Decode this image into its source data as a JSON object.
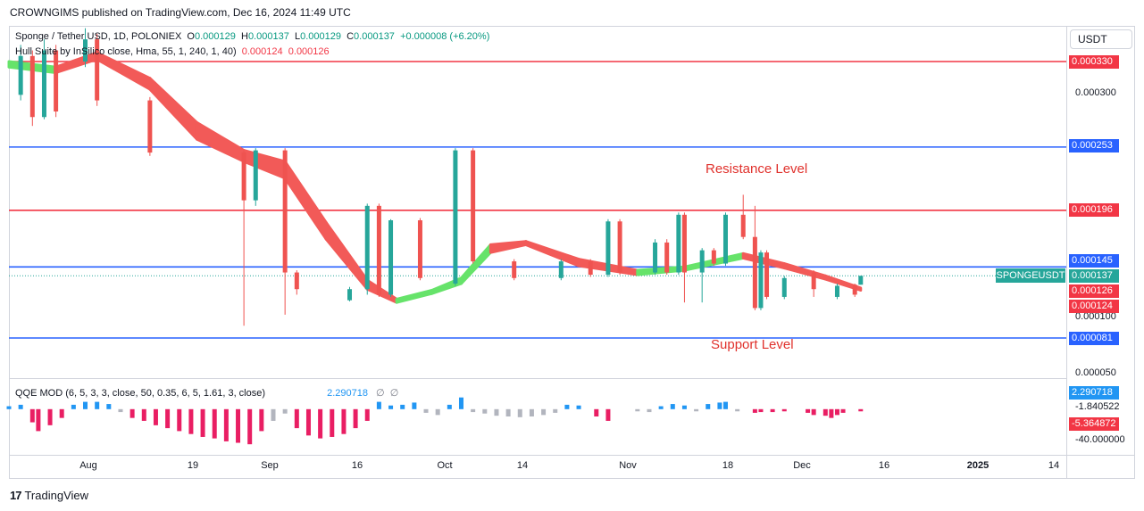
{
  "header": {
    "publisher_line": "CROWNGIMS published on TradingView.com, Dec 16, 2024 11:49 UTC"
  },
  "legend": {
    "symbol": "Sponge / Tether USD, 1D, POLONIEX",
    "o_label": "O",
    "o_value": "0.000129",
    "h_label": "H",
    "h_value": "0.000137",
    "l_label": "L",
    "l_value": "0.000129",
    "c_label": "C",
    "c_value": "0.000137",
    "change": "+0.000008 (+6.20%)",
    "hull_text": "Hull Suite by InSilico close, Hma, 55, 1, 240, 1, 40)",
    "hull_v1": "0.000124",
    "hull_v2": "0.000126"
  },
  "currency_button": "USDT",
  "price_axis": {
    "ticks": [
      "0.000300",
      "0.000100",
      "0.000050"
    ],
    "labels": [
      {
        "text": "0.000330",
        "color": "#f23645"
      },
      {
        "text": "0.000253",
        "color": "#2962ff"
      },
      {
        "text": "0.000196",
        "color": "#f23645"
      },
      {
        "text": "0.000145",
        "color": "#2962ff"
      },
      {
        "text": "0.000137",
        "color": "#26a69a"
      },
      {
        "text": "0.000126",
        "color": "#f23645"
      },
      {
        "text": "0.000124",
        "color": "#f23645"
      },
      {
        "text": "0.000081",
        "color": "#2962ff"
      }
    ]
  },
  "symbol_tag": "SPONGEUSDT",
  "annotations": {
    "resistance": "Resistance Level",
    "support": "Support Level"
  },
  "time_axis": [
    "Aug",
    "19",
    "Sep",
    "16",
    "Oct",
    "14",
    "Nov",
    "18",
    "Dec",
    "16",
    "2025",
    "14"
  ],
  "qqe": {
    "label": "QQE MOD (6, 5, 3, 3, close, 50, 0.35, 6, 5, 1.61, 3, close)",
    "value": "2.290718",
    "axis_labels": [
      {
        "text": "2.290718",
        "color": "#2196f3"
      },
      {
        "text": "-1.840522",
        "color": null
      },
      {
        "text": "-5.364872",
        "color": "#f23645"
      },
      {
        "text": "-40.000000",
        "color": null
      }
    ]
  },
  "branding": {
    "name": "TradingView"
  },
  "chart_data": {
    "type": "candlestick",
    "title": "Sponge / Tether USD, 1D, POLONIEX",
    "x_range": [
      "2024-07-24",
      "2025-01-20"
    ],
    "ylim": [
      4e-05,
      0.00035
    ],
    "horizontal_levels": [
      {
        "value": 0.00033,
        "color": "#f23645"
      },
      {
        "value": 0.000253,
        "color": "#2962ff"
      },
      {
        "value": 0.000196,
        "color": "#f23645"
      },
      {
        "value": 0.000145,
        "color": "#2962ff"
      },
      {
        "value": 8.1e-05,
        "color": "#2962ff"
      }
    ],
    "candles": [
      {
        "date": "2024-07-26",
        "o": 0.0003,
        "c": 0.000335,
        "h": 0.000345,
        "l": 0.000295
      },
      {
        "date": "2024-07-28",
        "o": 0.000335,
        "c": 0.00028,
        "h": 0.00034,
        "l": 0.000272
      },
      {
        "date": "2024-07-30",
        "o": 0.00028,
        "c": 0.00034,
        "h": 0.00035,
        "l": 0.000278
      },
      {
        "date": "2024-08-01",
        "o": 0.00034,
        "c": 0.000285,
        "h": 0.000345,
        "l": 0.00028
      },
      {
        "date": "2024-08-06",
        "o": 0.00033,
        "c": 0.00035,
        "h": 0.00036,
        "l": 0.000325
      },
      {
        "date": "2024-08-08",
        "o": 0.00035,
        "c": 0.000295,
        "h": 0.000355,
        "l": 0.00029
      },
      {
        "date": "2024-08-17",
        "o": 0.000295,
        "c": 0.000248,
        "h": 0.000298,
        "l": 0.000245
      },
      {
        "date": "2024-09-02",
        "o": 0.000248,
        "c": 0.000205,
        "h": 0.00025,
        "l": 9.2e-05
      },
      {
        "date": "2024-09-04",
        "o": 0.000205,
        "c": 0.00025,
        "h": 0.000252,
        "l": 0.0002
      },
      {
        "date": "2024-09-09",
        "o": 0.00025,
        "c": 0.00014,
        "h": 0.000252,
        "l": 0.000102
      },
      {
        "date": "2024-09-11",
        "o": 0.00014,
        "c": 0.000125,
        "h": 0.000142,
        "l": 0.00012
      },
      {
        "date": "2024-09-20",
        "o": 0.000115,
        "c": 0.000125,
        "h": 0.000127,
        "l": 0.000114
      },
      {
        "date": "2024-09-23",
        "o": 0.000125,
        "c": 0.0002,
        "h": 0.000202,
        "l": 0.00012
      },
      {
        "date": "2024-09-25",
        "o": 0.0002,
        "c": 0.00012,
        "h": 0.000202,
        "l": 0.000118
      },
      {
        "date": "2024-09-27",
        "o": 0.00012,
        "c": 0.000187,
        "h": 0.000188,
        "l": 0.000118
      },
      {
        "date": "2024-10-02",
        "o": 0.000187,
        "c": 0.000135,
        "h": 0.000189,
        "l": 0.000133
      },
      {
        "date": "2024-10-08",
        "o": 0.00013,
        "c": 0.00025,
        "h": 0.000252,
        "l": 0.000128
      },
      {
        "date": "2024-10-11",
        "o": 0.00025,
        "c": 0.00015,
        "h": 0.000252,
        "l": 0.000148
      },
      {
        "date": "2024-10-18",
        "o": 0.00015,
        "c": 0.000135,
        "h": 0.000152,
        "l": 0.000133
      },
      {
        "date": "2024-10-26",
        "o": 0.000135,
        "c": 0.00015,
        "h": 0.000152,
        "l": 0.000133
      },
      {
        "date": "2024-10-31",
        "o": 0.00015,
        "c": 0.000138,
        "h": 0.000152,
        "l": 0.000136
      },
      {
        "date": "2024-11-03",
        "o": 0.000138,
        "c": 0.000186,
        "h": 0.000188,
        "l": 0.000136
      },
      {
        "date": "2024-11-05",
        "o": 0.000186,
        "c": 0.00014,
        "h": 0.000188,
        "l": 0.000138
      },
      {
        "date": "2024-11-11",
        "o": 0.00014,
        "c": 0.000167,
        "h": 0.00017,
        "l": 0.000138
      },
      {
        "date": "2024-11-13",
        "o": 0.000167,
        "c": 0.00014,
        "h": 0.00017,
        "l": 0.000138
      },
      {
        "date": "2024-11-15",
        "o": 0.00014,
        "c": 0.000192,
        "h": 0.000194,
        "l": 0.000138
      },
      {
        "date": "2024-11-16",
        "o": 0.000192,
        "c": 0.00014,
        "h": 0.000194,
        "l": 0.000113
      },
      {
        "date": "2024-11-19",
        "o": 0.00014,
        "c": 0.00016,
        "h": 0.000162,
        "l": 0.000113
      },
      {
        "date": "2024-11-21",
        "o": 0.00016,
        "c": 0.000148,
        "h": 0.000162,
        "l": 0.000146
      },
      {
        "date": "2024-11-23",
        "o": 0.000148,
        "c": 0.000192,
        "h": 0.000194,
        "l": 0.000146
      },
      {
        "date": "2024-11-26",
        "o": 0.000192,
        "c": 0.000172,
        "h": 0.00021,
        "l": 0.00017
      },
      {
        "date": "2024-11-28",
        "o": 0.000172,
        "c": 0.000108,
        "h": 0.0002,
        "l": 0.000106
      },
      {
        "date": "2024-11-29",
        "o": 0.000108,
        "c": 0.000158,
        "h": 0.00016,
        "l": 0.000106
      },
      {
        "date": "2024-11-30",
        "o": 0.000158,
        "c": 0.000118,
        "h": 0.00016,
        "l": 0.000116
      },
      {
        "date": "2024-12-03",
        "o": 0.000118,
        "c": 0.000135,
        "h": 0.000137,
        "l": 0.000116
      },
      {
        "date": "2024-12-08",
        "o": 0.00014,
        "c": 0.000125,
        "h": 0.000142,
        "l": 0.000118
      },
      {
        "date": "2024-12-12",
        "o": 0.000118,
        "c": 0.000128,
        "h": 0.00013,
        "l": 0.000116
      },
      {
        "date": "2024-12-15",
        "o": 0.000129,
        "c": 0.00012,
        "h": 0.00013,
        "l": 0.000118
      },
      {
        "date": "2024-12-16",
        "o": 0.000129,
        "c": 0.000137,
        "h": 0.000137,
        "l": 0.000129
      }
    ],
    "hull_band": [
      {
        "date": "2024-07-24",
        "a": 0.00033,
        "b": 0.000325,
        "trend": "up"
      },
      {
        "date": "2024-08-01",
        "a": 0.000325,
        "b": 0.00032,
        "trend": "up"
      },
      {
        "date": "2024-08-08",
        "a": 0.000338,
        "b": 0.000332,
        "trend": "down"
      },
      {
        "date": "2024-08-17",
        "a": 0.000315,
        "b": 0.000305,
        "trend": "down"
      },
      {
        "date": "2024-08-25",
        "a": 0.000275,
        "b": 0.00026,
        "trend": "down"
      },
      {
        "date": "2024-09-02",
        "a": 0.00025,
        "b": 0.00024,
        "trend": "down"
      },
      {
        "date": "2024-09-09",
        "a": 0.00024,
        "b": 0.000225,
        "trend": "down"
      },
      {
        "date": "2024-09-16",
        "a": 0.000185,
        "b": 0.00017,
        "trend": "down"
      },
      {
        "date": "2024-09-23",
        "a": 0.000133,
        "b": 0.000125,
        "trend": "down"
      },
      {
        "date": "2024-09-28",
        "a": 0.000116,
        "b": 0.000113,
        "trend": "down"
      },
      {
        "date": "2024-10-04",
        "a": 0.000124,
        "b": 0.000121,
        "trend": "up"
      },
      {
        "date": "2024-10-09",
        "a": 0.000135,
        "b": 0.00013,
        "trend": "up"
      },
      {
        "date": "2024-10-14",
        "a": 0.000165,
        "b": 0.000158,
        "trend": "up"
      },
      {
        "date": "2024-10-20",
        "a": 0.000168,
        "b": 0.000165,
        "trend": "down"
      },
      {
        "date": "2024-10-29",
        "a": 0.000152,
        "b": 0.000146,
        "trend": "down"
      },
      {
        "date": "2024-11-08",
        "a": 0.000142,
        "b": 0.000138,
        "trend": "down"
      },
      {
        "date": "2024-11-16",
        "a": 0.000145,
        "b": 0.000142,
        "trend": "up"
      },
      {
        "date": "2024-11-26",
        "a": 0.000157,
        "b": 0.000153,
        "trend": "up"
      },
      {
        "date": "2024-12-03",
        "a": 0.000148,
        "b": 0.000144,
        "trend": "down"
      },
      {
        "date": "2024-12-10",
        "a": 0.000137,
        "b": 0.000134,
        "trend": "down"
      },
      {
        "date": "2024-12-16",
        "a": 0.000126,
        "b": 0.000124,
        "trend": "down"
      }
    ],
    "qqe_ylim": [
      -60,
      40
    ],
    "qqe_histogram": [
      {
        "date": "2024-07-24",
        "v": 4,
        "c": "#2196f3"
      },
      {
        "date": "2024-07-26",
        "v": 6,
        "c": "#2196f3"
      },
      {
        "date": "2024-07-28",
        "v": -18,
        "c": "#e91e63"
      },
      {
        "date": "2024-07-29",
        "v": -30,
        "c": "#e91e63"
      },
      {
        "date": "2024-07-31",
        "v": -22,
        "c": "#e91e63"
      },
      {
        "date": "2024-08-02",
        "v": -12,
        "c": "#e91e63"
      },
      {
        "date": "2024-08-04",
        "v": 6,
        "c": "#2196f3"
      },
      {
        "date": "2024-08-06",
        "v": 10,
        "c": "#2196f3"
      },
      {
        "date": "2024-08-08",
        "v": 10,
        "c": "#2196f3"
      },
      {
        "date": "2024-08-10",
        "v": 7,
        "c": "#2196f3"
      },
      {
        "date": "2024-08-12",
        "v": -4,
        "c": "#b2b5be"
      },
      {
        "date": "2024-08-14",
        "v": -12,
        "c": "#e91e63"
      },
      {
        "date": "2024-08-16",
        "v": -16,
        "c": "#e91e63"
      },
      {
        "date": "2024-08-18",
        "v": -22,
        "c": "#e91e63"
      },
      {
        "date": "2024-08-20",
        "v": -26,
        "c": "#e91e63"
      },
      {
        "date": "2024-08-22",
        "v": -30,
        "c": "#e91e63"
      },
      {
        "date": "2024-08-24",
        "v": -34,
        "c": "#e91e63"
      },
      {
        "date": "2024-08-26",
        "v": -38,
        "c": "#e91e63"
      },
      {
        "date": "2024-08-28",
        "v": -40,
        "c": "#e91e63"
      },
      {
        "date": "2024-08-30",
        "v": -44,
        "c": "#e91e63"
      },
      {
        "date": "2024-09-01",
        "v": -46,
        "c": "#e91e63"
      },
      {
        "date": "2024-09-03",
        "v": -48,
        "c": "#e91e63"
      },
      {
        "date": "2024-09-05",
        "v": -30,
        "c": "#e91e63"
      },
      {
        "date": "2024-09-07",
        "v": -16,
        "c": "#b2b5be"
      },
      {
        "date": "2024-09-09",
        "v": -6,
        "c": "#b2b5be"
      },
      {
        "date": "2024-09-11",
        "v": -26,
        "c": "#e91e63"
      },
      {
        "date": "2024-09-13",
        "v": -36,
        "c": "#e91e63"
      },
      {
        "date": "2024-09-15",
        "v": -40,
        "c": "#e91e63"
      },
      {
        "date": "2024-09-17",
        "v": -38,
        "c": "#e91e63"
      },
      {
        "date": "2024-09-19",
        "v": -34,
        "c": "#e91e63"
      },
      {
        "date": "2024-09-21",
        "v": -26,
        "c": "#e91e63"
      },
      {
        "date": "2024-09-23",
        "v": -16,
        "c": "#e91e63"
      },
      {
        "date": "2024-09-25",
        "v": 10,
        "c": "#2196f3"
      },
      {
        "date": "2024-09-27",
        "v": 5,
        "c": "#2196f3"
      },
      {
        "date": "2024-09-29",
        "v": 6,
        "c": "#2196f3"
      },
      {
        "date": "2024-10-01",
        "v": 9,
        "c": "#2196f3"
      },
      {
        "date": "2024-10-03",
        "v": -5,
        "c": "#b2b5be"
      },
      {
        "date": "2024-10-05",
        "v": -8,
        "c": "#b2b5be"
      },
      {
        "date": "2024-10-07",
        "v": 6,
        "c": "#2196f3"
      },
      {
        "date": "2024-10-09",
        "v": 16,
        "c": "#2196f3"
      },
      {
        "date": "2024-10-11",
        "v": -4,
        "c": "#b2b5be"
      },
      {
        "date": "2024-10-13",
        "v": -6,
        "c": "#b2b5be"
      },
      {
        "date": "2024-10-15",
        "v": -9,
        "c": "#b2b5be"
      },
      {
        "date": "2024-10-17",
        "v": -10,
        "c": "#b2b5be"
      },
      {
        "date": "2024-10-19",
        "v": -11,
        "c": "#b2b5be"
      },
      {
        "date": "2024-10-21",
        "v": -10,
        "c": "#b2b5be"
      },
      {
        "date": "2024-10-23",
        "v": -8,
        "c": "#b2b5be"
      },
      {
        "date": "2024-10-25",
        "v": -5,
        "c": "#b2b5be"
      },
      {
        "date": "2024-10-27",
        "v": 6,
        "c": "#2196f3"
      },
      {
        "date": "2024-10-29",
        "v": 5,
        "c": "#2196f3"
      },
      {
        "date": "2024-11-01",
        "v": -10,
        "c": "#e91e63"
      },
      {
        "date": "2024-11-03",
        "v": -16,
        "c": "#e91e63"
      },
      {
        "date": "2024-11-08",
        "v": -3,
        "c": "#b2b5be"
      },
      {
        "date": "2024-11-10",
        "v": -4,
        "c": "#b2b5be"
      },
      {
        "date": "2024-11-12",
        "v": 4,
        "c": "#2196f3"
      },
      {
        "date": "2024-11-14",
        "v": 7,
        "c": "#2196f3"
      },
      {
        "date": "2024-11-16",
        "v": 5,
        "c": "#2196f3"
      },
      {
        "date": "2024-11-18",
        "v": -3,
        "c": "#b2b5be"
      },
      {
        "date": "2024-11-20",
        "v": 7,
        "c": "#2196f3"
      },
      {
        "date": "2024-11-22",
        "v": 9,
        "c": "#2196f3"
      },
      {
        "date": "2024-11-23",
        "v": 10,
        "c": "#2196f3"
      },
      {
        "date": "2024-11-25",
        "v": -3,
        "c": "#b2b5be"
      },
      {
        "date": "2024-11-28",
        "v": -5,
        "c": "#e91e63"
      },
      {
        "date": "2024-11-29",
        "v": -4,
        "c": "#e91e63"
      },
      {
        "date": "2024-12-01",
        "v": -4,
        "c": "#e91e63"
      },
      {
        "date": "2024-12-03",
        "v": -3,
        "c": "#e91e63"
      },
      {
        "date": "2024-12-07",
        "v": -5,
        "c": "#e91e63"
      },
      {
        "date": "2024-12-08",
        "v": -8,
        "c": "#e91e63"
      },
      {
        "date": "2024-12-10",
        "v": -9,
        "c": "#e91e63"
      },
      {
        "date": "2024-12-11",
        "v": -12,
        "c": "#e91e63"
      },
      {
        "date": "2024-12-12",
        "v": -8,
        "c": "#e91e63"
      },
      {
        "date": "2024-12-13",
        "v": -5,
        "c": "#e91e63"
      },
      {
        "date": "2024-12-16",
        "v": -3,
        "c": "#e91e63"
      }
    ]
  }
}
